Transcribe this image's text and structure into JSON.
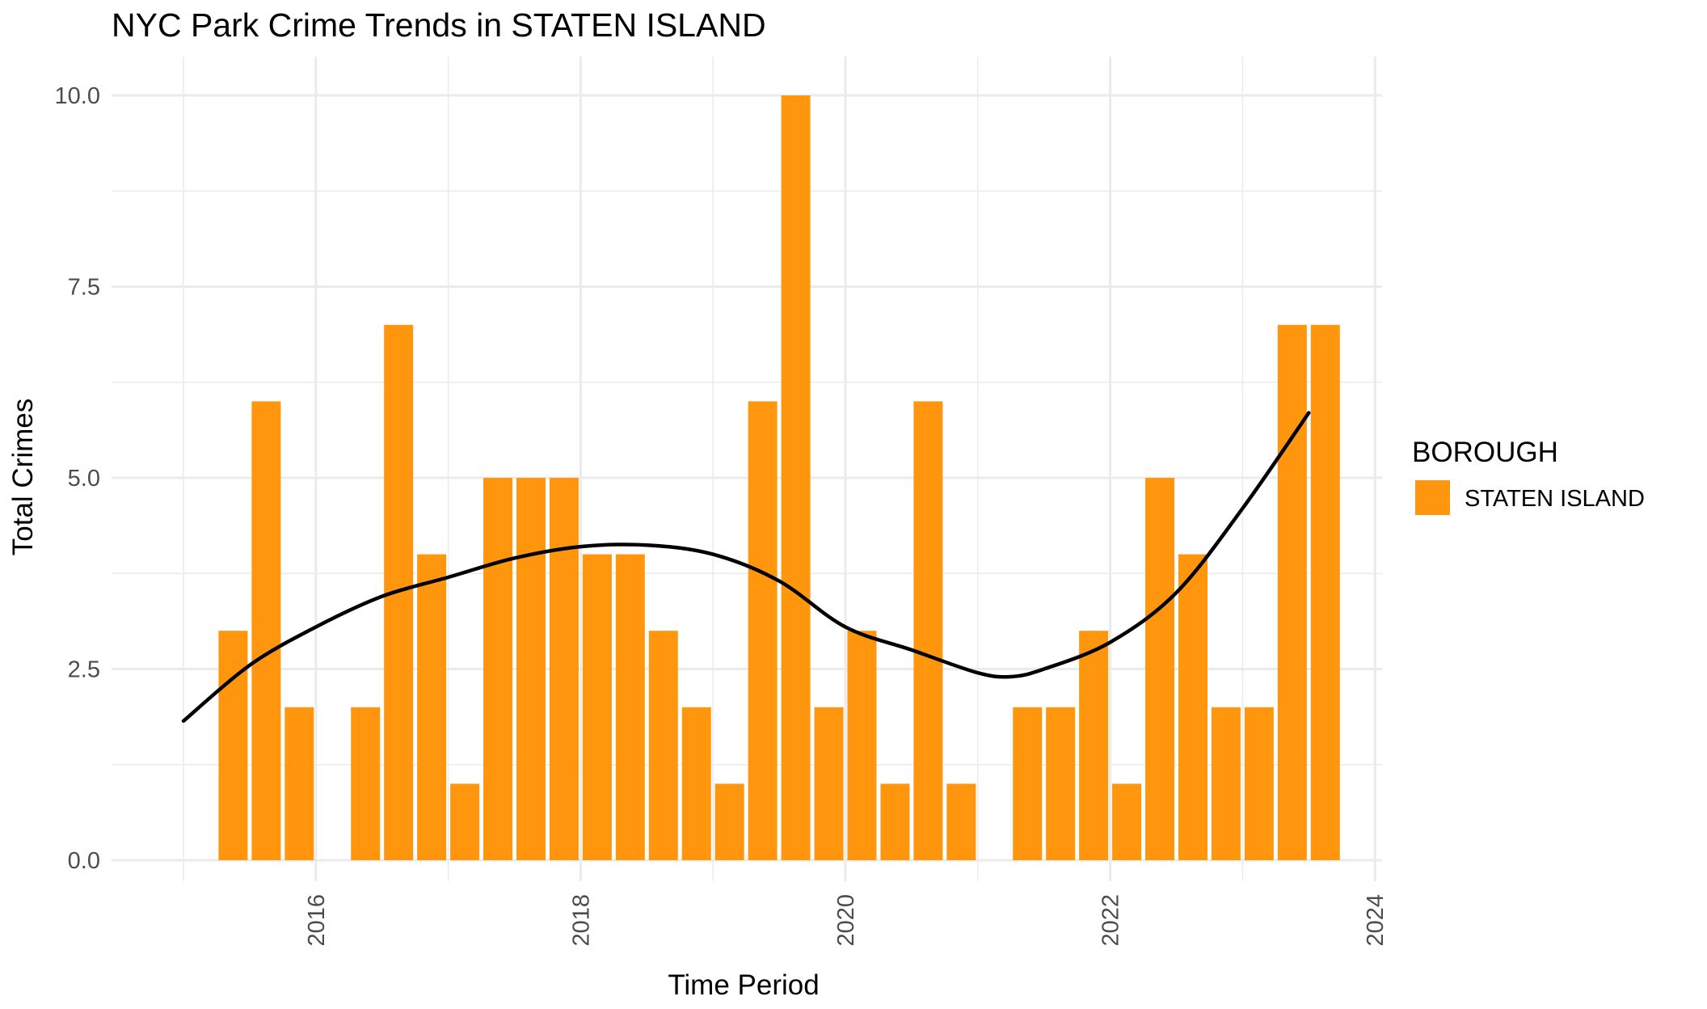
{
  "chart_data": {
    "type": "bar",
    "title": "NYC Park Crime Trends in STATEN ISLAND",
    "xlabel": "Time Period",
    "ylabel": "Total Crimes",
    "x_ticks": [
      "2016",
      "2018",
      "2020",
      "2022",
      "2024"
    ],
    "y_ticks": [
      "0.0",
      "2.5",
      "5.0",
      "7.5",
      "10.0"
    ],
    "ylim": [
      0,
      10
    ],
    "grid": true,
    "legend": {
      "title": "BOROUGH",
      "position": "right",
      "entries": [
        {
          "label": "STATEN ISLAND",
          "color": "#FF960D"
        }
      ]
    },
    "bar_color": "#FF960D",
    "trend_color": "#000000",
    "series": [
      {
        "name": "STATEN ISLAND",
        "type": "bar",
        "x": [
          "2015-Q2",
          "2015-Q3",
          "2015-Q4",
          "2016-Q2",
          "2016-Q3",
          "2016-Q4",
          "2017-Q1",
          "2017-Q2",
          "2017-Q3",
          "2017-Q4",
          "2018-Q1",
          "2018-Q2",
          "2018-Q3",
          "2018-Q4",
          "2019-Q1",
          "2019-Q2",
          "2019-Q3",
          "2019-Q4",
          "2020-Q1",
          "2020-Q2",
          "2020-Q3",
          "2020-Q4",
          "2021-Q2",
          "2021-Q3",
          "2021-Q4",
          "2022-Q1",
          "2022-Q2",
          "2022-Q3",
          "2022-Q4",
          "2023-Q1",
          "2023-Q2",
          "2023-Q3"
        ],
        "values": [
          3,
          6,
          2,
          2,
          7,
          4,
          1,
          5,
          5,
          5,
          4,
          4,
          3,
          2,
          1,
          6,
          10,
          2,
          3,
          1,
          6,
          1,
          2,
          2,
          3,
          1,
          5,
          4,
          2,
          2,
          7,
          7
        ]
      },
      {
        "type": "smooth",
        "x": [
          "2015-01-01",
          "2015-07-01",
          "2016-01-01",
          "2016-07-01",
          "2017-01-01",
          "2017-07-01",
          "2018-01-01",
          "2018-07-01",
          "2019-01-01",
          "2019-07-01",
          "2020-01-01",
          "2020-07-01",
          "2021-01-01",
          "2021-04-01",
          "2021-07-01",
          "2022-01-01",
          "2022-07-01",
          "2023-01-01",
          "2023-07-01"
        ],
        "values": [
          1.82,
          2.55,
          3.05,
          3.45,
          3.7,
          3.95,
          4.1,
          4.12,
          4.0,
          3.65,
          3.05,
          2.75,
          2.45,
          2.4,
          2.5,
          2.85,
          3.5,
          4.6,
          5.85
        ]
      }
    ]
  }
}
